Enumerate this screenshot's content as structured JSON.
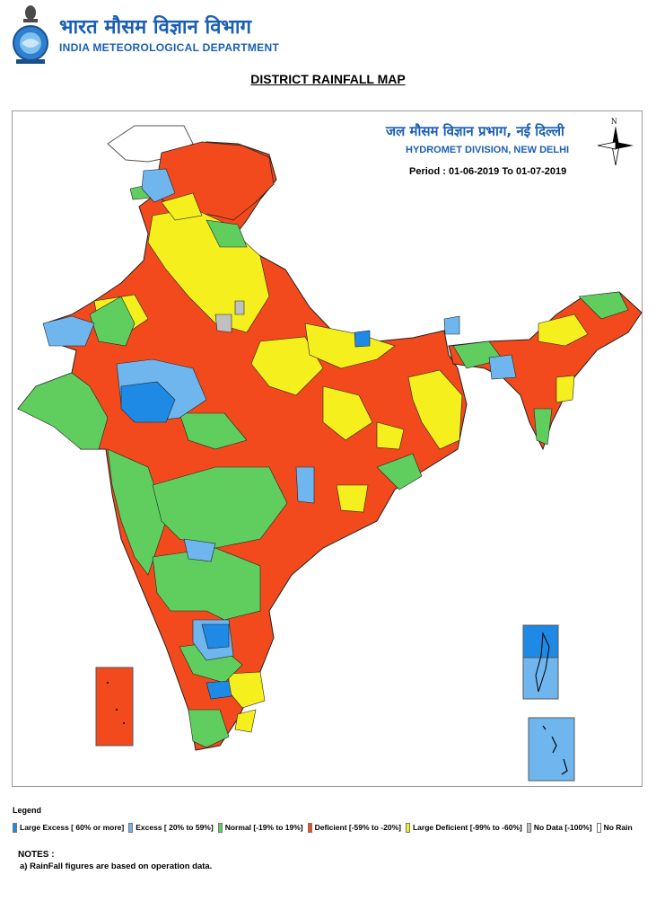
{
  "header": {
    "org_hindi": "भारत मौसम विज्ञान विभाग",
    "org_english": "INDIA METEOROLOGICAL DEPARTMENT",
    "emblem_icon": "imd-emblem-icon"
  },
  "map": {
    "title": "DISTRICT RAINFALL MAP",
    "division_hindi": "जल मौसम विज्ञान प्रभाग, नई दिल्ली",
    "division_english": "HYDROMET DIVISION, NEW DELHI",
    "period": "Period : 01-06-2019 To 01-07-2019",
    "north_label": "N",
    "compass_icon": "north-arrow-icon"
  },
  "legend": {
    "title": "Legend",
    "items": [
      {
        "label": "Large Excess [ 60% or more]",
        "color": "#1e8ae6"
      },
      {
        "label": "Excess [ 20% to 59%]",
        "color": "#6fb6ee"
      },
      {
        "label": "Normal [-19% to 19%]",
        "color": "#5fce5f"
      },
      {
        "label": "Deficient [-59% to -20%]",
        "color": "#f24a1c"
      },
      {
        "label": "Large Deficient [-99% to -60%]",
        "color": "#f5ef1e"
      },
      {
        "label": "No Data  [-100%]",
        "color": "#c0c0c0"
      },
      {
        "label": "No Rain",
        "color": "#ffffff"
      }
    ]
  },
  "notes": {
    "title": "NOTES :",
    "items": [
      "a) RainFall figures are based on operation data."
    ]
  }
}
